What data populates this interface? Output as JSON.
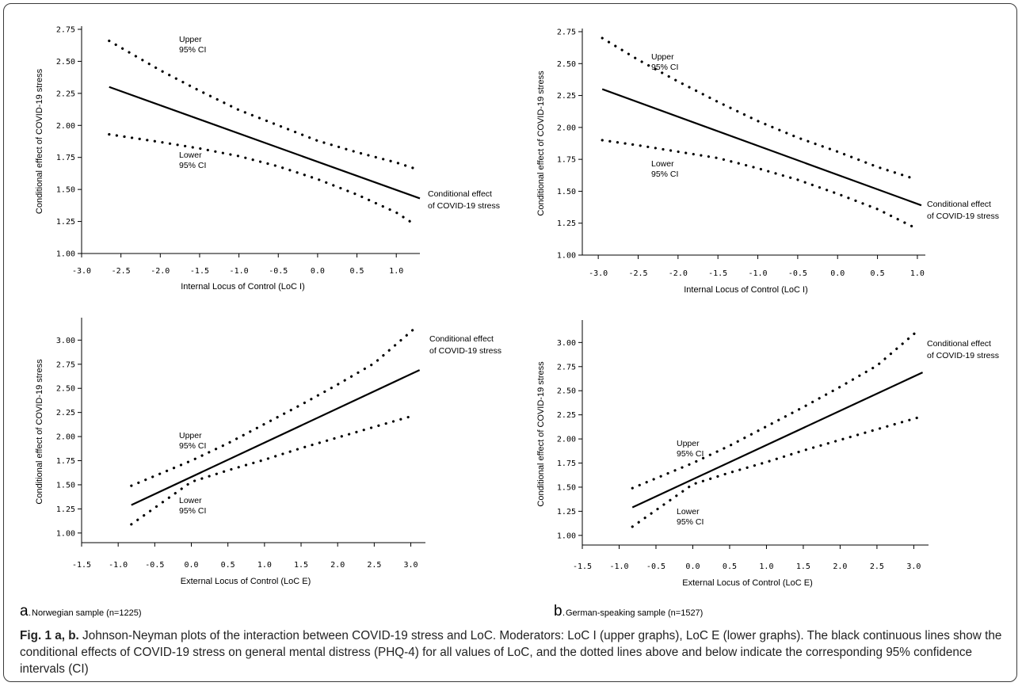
{
  "caption": {
    "label": "Fig. 1 a, b.",
    "text": "Johnson-Neyman plots of the interaction between COVID-19 stress and LoC. Moderators: LoC I (upper graphs), LoC E (lower graphs). The black continuous lines show the conditional effects of COVID-19 stress on general mental distress (PHQ-4) for all values of LoC, and the dotted lines above and below indicate the corresponding 95% confidence intervals (CI)"
  },
  "panels": [
    {
      "letter": "a.",
      "name": "Norwegian sample (n=1225)"
    },
    {
      "letter": "b.",
      "name": "German-speaking sample (n=1527)"
    }
  ],
  "chart_data": [
    {
      "type": "line",
      "id": "a-top",
      "xlabel": "Internal Locus of Control (LoC I)",
      "ylabel": "Conditional effect of COVID-19 stress",
      "xlim": [
        -3.0,
        1.3
      ],
      "ylim": [
        1.0,
        2.75
      ],
      "xticks": [
        "-3.0",
        "-2.5",
        "-2.0",
        "-1.5",
        "-1.0",
        "-0.5",
        "0.0",
        "0.5",
        "1.0"
      ],
      "yticks": [
        "1.00",
        "1.25",
        "1.50",
        "1.75",
        "2.00",
        "2.25",
        "2.50",
        "2.75"
      ],
      "annotations": {
        "upper": [
          "Upper",
          "95% CI"
        ],
        "lower": [
          "Lower",
          "95% CI"
        ],
        "effect": [
          "Conditional effect",
          "of COVID-19 stress"
        ]
      },
      "series": [
        {
          "style": "solid",
          "x": [
            -2.65,
            1.3
          ],
          "y": [
            2.3,
            1.43
          ]
        },
        {
          "style": "dotted",
          "x": [
            -2.65,
            -2.0,
            -1.5,
            -1.0,
            -0.5,
            0.0,
            0.5,
            1.0,
            1.25
          ],
          "y": [
            2.66,
            2.43,
            2.27,
            2.12,
            2.0,
            1.88,
            1.79,
            1.71,
            1.66
          ]
        },
        {
          "style": "dotted",
          "x": [
            -2.65,
            -2.0,
            -1.5,
            -1.0,
            -0.5,
            0.0,
            0.5,
            1.0,
            1.25
          ],
          "y": [
            1.93,
            1.87,
            1.82,
            1.76,
            1.68,
            1.58,
            1.46,
            1.32,
            1.22
          ]
        }
      ]
    },
    {
      "type": "line",
      "id": "b-top",
      "xlabel": "Internal Locus of Control (LoC I)",
      "ylabel": "Conditional effect of COVID-19 stress",
      "xlim": [
        -3.2,
        1.1
      ],
      "ylim": [
        1.0,
        2.75
      ],
      "xticks": [
        "-3.0",
        "-2.5",
        "-2.0",
        "-1.5",
        "-1.0",
        "-0.5",
        "0.0",
        "0.5",
        "1.0"
      ],
      "yticks": [
        "1.00",
        "1.25",
        "1.50",
        "1.75",
        "2.00",
        "2.25",
        "2.50",
        "2.75"
      ],
      "annotations": {
        "upper": [
          "Upper",
          "95% CI"
        ],
        "lower": [
          "Lower",
          "95% CI"
        ],
        "effect": [
          "Conditional effect",
          "of COVID-19 stress"
        ]
      },
      "series": [
        {
          "style": "solid",
          "x": [
            -2.95,
            1.05
          ],
          "y": [
            2.3,
            1.39
          ]
        },
        {
          "style": "dotted",
          "x": [
            -2.95,
            -2.5,
            -2.0,
            -1.5,
            -1.0,
            -0.5,
            0.0,
            0.5,
            0.95
          ],
          "y": [
            2.7,
            2.53,
            2.36,
            2.2,
            2.05,
            1.92,
            1.81,
            1.69,
            1.6
          ]
        },
        {
          "style": "dotted",
          "x": [
            -2.95,
            -2.5,
            -2.0,
            -1.5,
            -1.0,
            -0.5,
            0.0,
            0.5,
            0.95
          ],
          "y": [
            1.9,
            1.86,
            1.81,
            1.76,
            1.68,
            1.59,
            1.48,
            1.36,
            1.22
          ]
        }
      ]
    },
    {
      "type": "line",
      "id": "a-bottom",
      "xlabel": "External Locus of Control (LoC E)",
      "ylabel": "Conditional effect of COVID-19 stress",
      "xlim": [
        -1.5,
        3.2
      ],
      "ylim": [
        0.9,
        3.2
      ],
      "xticks": [
        "-1.5",
        "-1.0",
        "-0.5",
        "0.0",
        "0.5",
        "1.0",
        "1.5",
        "2.0",
        "2.5",
        "3.0"
      ],
      "yticks": [
        "1.00",
        "1.25",
        "1.50",
        "1.75",
        "2.00",
        "2.25",
        "2.50",
        "2.75",
        "3.00"
      ],
      "annotations": {
        "upper": [
          "Upper",
          "95% CI"
        ],
        "lower": [
          "Lower",
          "95% CI"
        ],
        "effect": [
          "Conditional effect",
          "of COVID-19 stress"
        ]
      },
      "series": [
        {
          "style": "solid",
          "x": [
            -0.82,
            3.12
          ],
          "y": [
            1.29,
            2.69
          ]
        },
        {
          "style": "dotted",
          "x": [
            -0.82,
            0.0,
            0.5,
            1.0,
            1.5,
            2.0,
            2.5,
            3.05
          ],
          "y": [
            1.49,
            1.75,
            1.93,
            2.13,
            2.33,
            2.54,
            2.76,
            3.12
          ]
        },
        {
          "style": "dotted",
          "x": [
            -0.82,
            0.0,
            0.5,
            1.0,
            1.5,
            2.0,
            2.5,
            3.05
          ],
          "y": [
            1.09,
            1.53,
            1.65,
            1.76,
            1.88,
            1.99,
            2.1,
            2.22
          ]
        }
      ]
    },
    {
      "type": "line",
      "id": "b-bottom",
      "xlabel": "External Locus of Control (LoC E)",
      "ylabel": "Conditional effect of COVID-19 stress",
      "xlim": [
        -1.5,
        3.2
      ],
      "ylim": [
        0.9,
        3.2
      ],
      "xticks": [
        "-1.5",
        "-1.0",
        "-0.5",
        "0.0",
        "0.5",
        "1.0",
        "1.5",
        "2.0",
        "2.5",
        "3.0"
      ],
      "yticks": [
        "1.00",
        "1.25",
        "1.50",
        "1.75",
        "2.00",
        "2.25",
        "2.50",
        "2.75",
        "3.00"
      ],
      "annotations": {
        "upper": [
          "Upper",
          "95% CI"
        ],
        "lower": [
          "Lower",
          "95% CI"
        ],
        "effect": [
          "Conditional effect",
          "of COVID-19 stress"
        ]
      },
      "series": [
        {
          "style": "solid",
          "x": [
            -0.82,
            3.12
          ],
          "y": [
            1.29,
            2.69
          ]
        },
        {
          "style": "dotted",
          "x": [
            -0.82,
            0.0,
            0.5,
            1.0,
            1.5,
            2.0,
            2.5,
            3.05
          ],
          "y": [
            1.49,
            1.75,
            1.93,
            2.13,
            2.33,
            2.54,
            2.76,
            3.12
          ]
        },
        {
          "style": "dotted",
          "x": [
            -0.82,
            0.0,
            0.5,
            1.0,
            1.5,
            2.0,
            2.5,
            3.05
          ],
          "y": [
            1.09,
            1.53,
            1.65,
            1.76,
            1.88,
            1.99,
            2.1,
            2.22
          ]
        }
      ]
    }
  ]
}
